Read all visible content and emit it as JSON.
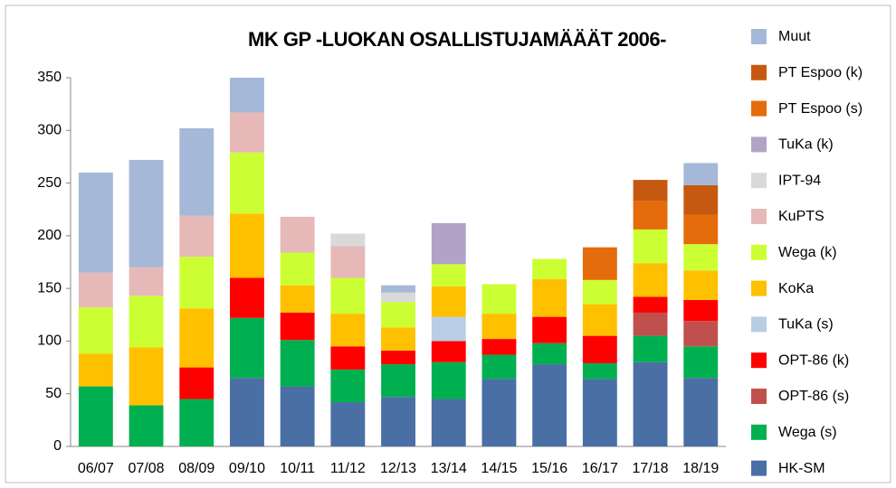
{
  "chart_data": {
    "type": "stacked_bar",
    "title": "MK GP -LUOKAN OSALLISTUJAMÄÄÄT 2006-",
    "categories": [
      "06/07",
      "07/08",
      "08/09",
      "09/10",
      "10/11",
      "11/12",
      "12/13",
      "13/14",
      "14/15",
      "15/16",
      "16/17",
      "17/18",
      "18/19"
    ],
    "series": [
      {
        "name": "HK-SM",
        "color": "#4a6fa5",
        "values": [
          null,
          null,
          null,
          65,
          57,
          42,
          47,
          45,
          64,
          78,
          64,
          80,
          65
        ]
      },
      {
        "name": "Wega (s)",
        "color": "#00b050",
        "values": [
          57,
          39,
          45,
          57,
          44,
          31,
          31,
          35,
          23,
          20,
          15,
          25,
          30
        ]
      },
      {
        "name": "OPT-86 (s)",
        "color": "#c0504d",
        "values": [
          null,
          null,
          null,
          null,
          null,
          null,
          null,
          null,
          null,
          null,
          null,
          22,
          24
        ]
      },
      {
        "name": "OPT-86 (k)",
        "color": "#ff0000",
        "values": [
          null,
          null,
          30,
          38,
          26,
          22,
          13,
          20,
          15,
          25,
          26,
          15,
          20
        ]
      },
      {
        "name": "TuKa (s)",
        "color": "#b9cde5",
        "values": [
          null,
          null,
          null,
          null,
          null,
          null,
          null,
          23,
          null,
          null,
          null,
          null,
          null
        ]
      },
      {
        "name": "KoKa",
        "color": "#ffc000",
        "values": [
          31,
          55,
          56,
          61,
          26,
          31,
          22,
          29,
          24,
          36,
          30,
          32,
          28
        ]
      },
      {
        "name": "Wega (k)",
        "color": "#ccff33",
        "values": [
          44,
          49,
          49,
          58,
          31,
          34,
          24,
          21,
          28,
          19,
          23,
          32,
          25
        ]
      },
      {
        "name": "KuPTS",
        "color": "#e6b9b8",
        "values": [
          33,
          27,
          39,
          38,
          34,
          30,
          null,
          null,
          null,
          null,
          null,
          null,
          null
        ]
      },
      {
        "name": "IPT-94",
        "color": "#d9d9d9",
        "values": [
          null,
          null,
          null,
          null,
          null,
          12,
          9,
          null,
          null,
          null,
          null,
          null,
          null
        ]
      },
      {
        "name": "TuKa (k)",
        "color": "#b3a2c7",
        "values": [
          null,
          null,
          null,
          null,
          null,
          null,
          null,
          39,
          null,
          null,
          null,
          null,
          null
        ]
      },
      {
        "name": "PT Espoo (s)",
        "color": "#e46c0a",
        "values": [
          null,
          null,
          null,
          null,
          null,
          null,
          null,
          null,
          null,
          null,
          31,
          27,
          28
        ]
      },
      {
        "name": "PT Espoo (k)",
        "color": "#c65911",
        "values": [
          null,
          null,
          null,
          null,
          null,
          null,
          null,
          null,
          null,
          null,
          null,
          20,
          28
        ]
      },
      {
        "name": "Muut",
        "color": "#a5b8d7",
        "values": [
          95,
          102,
          83,
          33,
          null,
          null,
          7,
          null,
          null,
          null,
          null,
          null,
          21
        ]
      }
    ],
    "ylim": [
      0,
      350
    ],
    "yticks": [
      0,
      50,
      100,
      150,
      200,
      250,
      300,
      350
    ],
    "grid": false,
    "legend": "right"
  }
}
